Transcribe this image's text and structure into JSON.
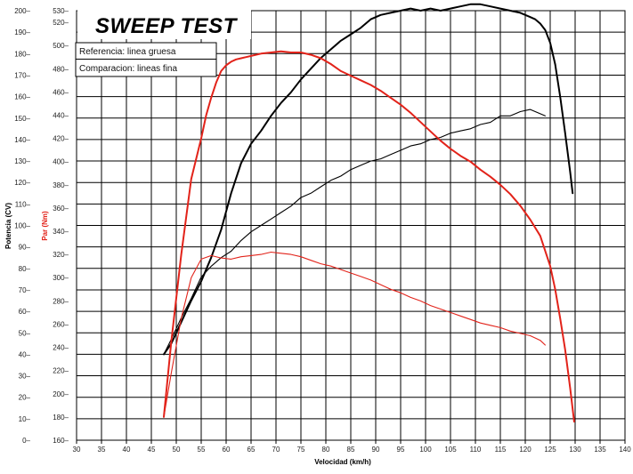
{
  "chart_data": {
    "type": "line",
    "title": "SWEEP TEST",
    "legend": {
      "placement": "top-left",
      "entries": [
        "Referencia: linea gruesa",
        "Comparacion: lineas fina"
      ]
    },
    "x_axis": {
      "label": "Velocidad (km/h)",
      "range": [
        30,
        140
      ],
      "ticks": [
        30,
        35,
        40,
        45,
        50,
        55,
        60,
        65,
        70,
        75,
        80,
        85,
        90,
        95,
        100,
        105,
        110,
        115,
        120,
        125,
        130,
        135,
        140
      ]
    },
    "y_axis_power": {
      "label": "Potencia (CV)",
      "range": [
        0,
        200
      ],
      "ticks": [
        0,
        10,
        20,
        30,
        40,
        50,
        60,
        70,
        80,
        90,
        100,
        110,
        120,
        130,
        140,
        150,
        160,
        170,
        180,
        190,
        200
      ]
    },
    "y_axis_torque": {
      "label": "Par (Nm)",
      "range": [
        160,
        530
      ],
      "ticks": [
        160,
        180,
        200,
        220,
        240,
        260,
        280,
        300,
        320,
        340,
        360,
        380,
        400,
        420,
        440,
        460,
        480,
        500,
        520,
        530
      ]
    },
    "grid": true,
    "series": [
      {
        "quantity": "power",
        "line": "thick",
        "color": "#000000",
        "x": [
          47.5,
          49,
          51,
          53,
          55,
          57,
          59,
          61,
          63,
          65,
          67,
          69,
          71,
          73,
          75,
          77,
          79,
          81,
          83,
          85,
          87,
          89,
          91,
          93,
          95,
          97,
          99,
          101,
          103,
          105,
          107,
          109,
          111,
          113,
          115,
          117,
          119,
          121,
          122,
          123,
          124,
          125,
          126,
          127,
          128,
          129,
          129.5
        ],
        "y": [
          40,
          45,
          55,
          65,
          74,
          85,
          98,
          115,
          129,
          138,
          144,
          151,
          157,
          162,
          168,
          173,
          178,
          182,
          186,
          189,
          192,
          196,
          198,
          199,
          200,
          201,
          200,
          201,
          200,
          201,
          202,
          203,
          203,
          202,
          201,
          200,
          199,
          197,
          196,
          194,
          191,
          185,
          175,
          160,
          143,
          125,
          115
        ]
      },
      {
        "quantity": "power",
        "line": "thin",
        "color": "#000000",
        "x": [
          47.5,
          49,
          51,
          53,
          55,
          57,
          59,
          61,
          63,
          65,
          67,
          69,
          71,
          73,
          75,
          77,
          79,
          81,
          83,
          85,
          87,
          89,
          91,
          93,
          95,
          97,
          99,
          101,
          103,
          105,
          107,
          109,
          111,
          113,
          115,
          117,
          119,
          121,
          122,
          123,
          124
        ],
        "y": [
          40,
          47,
          57,
          66,
          76,
          81,
          85,
          88,
          93,
          97,
          100,
          103,
          106,
          109,
          113,
          115,
          118,
          121,
          123,
          126,
          128,
          130,
          131,
          133,
          135,
          137,
          138,
          140,
          141,
          143,
          144,
          145,
          147,
          148,
          151,
          151,
          153,
          154,
          153,
          152,
          151
        ]
      },
      {
        "quantity": "torque",
        "line": "thick",
        "color": "#e2231a",
        "x": [
          47.5,
          49,
          51,
          53,
          55,
          56,
          57,
          58,
          59,
          60,
          61,
          62,
          63,
          64,
          65,
          67,
          69,
          71,
          73,
          75,
          77,
          79,
          81,
          83,
          85,
          87,
          89,
          91,
          93,
          95,
          97,
          99,
          101,
          103,
          105,
          107,
          109,
          111,
          113,
          115,
          117,
          119,
          121,
          123,
          124,
          125,
          126,
          127,
          128,
          129,
          129.8
        ],
        "y": [
          180,
          245,
          320,
          385,
          420,
          440,
          455,
          468,
          478,
          483,
          486,
          488,
          489,
          490,
          491,
          493,
          494,
          495,
          494,
          494,
          492,
          489,
          484,
          478,
          474,
          470,
          466,
          461,
          455,
          449,
          442,
          434,
          426,
          418,
          411,
          405,
          400,
          393,
          387,
          380,
          372,
          362,
          350,
          336,
          323,
          310,
          290,
          265,
          238,
          205,
          176
        ]
      },
      {
        "quantity": "torque",
        "line": "thin",
        "color": "#e2231a",
        "x": [
          47.5,
          49,
          51,
          53,
          55,
          57,
          59,
          61,
          63,
          65,
          67,
          69,
          71,
          73,
          75,
          77,
          79,
          81,
          83,
          85,
          87,
          89,
          91,
          93,
          95,
          97,
          99,
          101,
          103,
          105,
          107,
          109,
          111,
          113,
          115,
          117,
          119,
          121,
          123,
          124
        ],
        "y": [
          180,
          218,
          265,
          300,
          316,
          319,
          317,
          316,
          318,
          319,
          320,
          322,
          321,
          320,
          318,
          315,
          312,
          310,
          307,
          304,
          301,
          298,
          294,
          290,
          287,
          283,
          280,
          276,
          273,
          270,
          267,
          264,
          261,
          259,
          257,
          254,
          252,
          250,
          246,
          242
        ]
      }
    ]
  }
}
